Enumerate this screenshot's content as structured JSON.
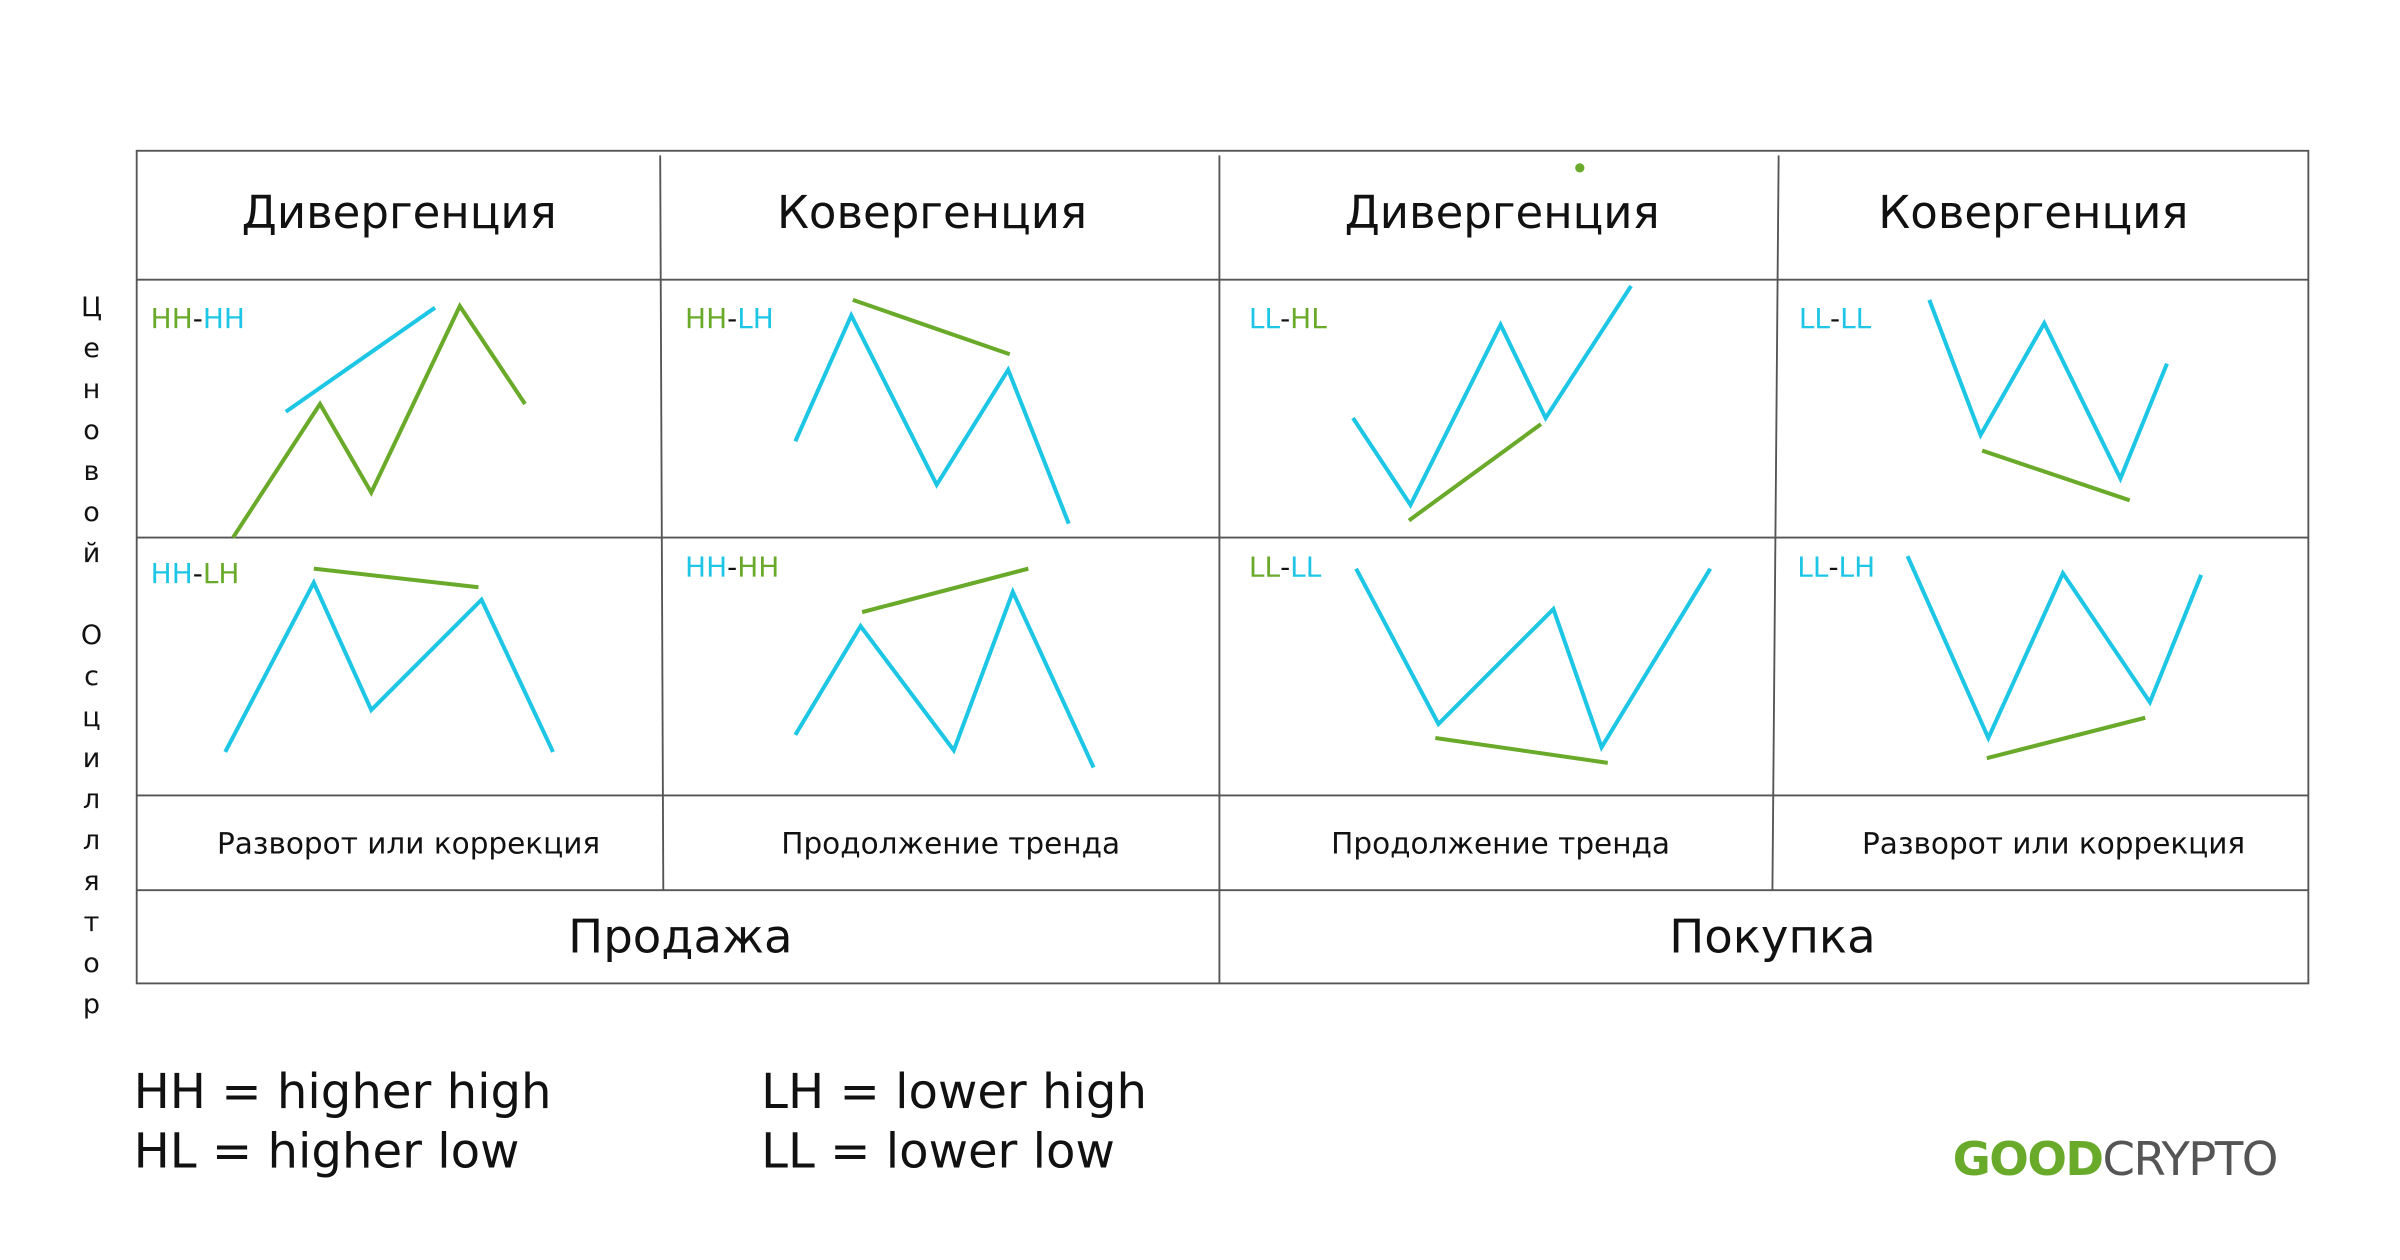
{
  "headers": [
    "Дивергенция",
    "Ковергенция",
    "Дивергенция",
    "Ковергенция"
  ],
  "cells": [
    {
      "label": [
        "HH",
        "-",
        "HH"
      ]
    },
    {
      "label": [
        "HH",
        "-",
        "LH"
      ]
    },
    {
      "label": [
        "LL",
        "-",
        "HL"
      ]
    },
    {
      "label": [
        "LL",
        "-",
        "LL"
      ]
    },
    {
      "label": [
        "HH",
        "-",
        "LH"
      ]
    },
    {
      "label": [
        "HH",
        "-",
        "HH"
      ]
    },
    {
      "label": [
        "LL",
        "-",
        "LL"
      ]
    },
    {
      "label": [
        "LL",
        "-",
        "LH"
      ]
    }
  ],
  "outcomes": [
    "Разворот или коррекция",
    "Продолжение тренда",
    "Продолжение тренда",
    "Разворот или коррекция"
  ],
  "actions": [
    "Продажа",
    "Покупка"
  ],
  "side_label": "Ценовой Осциллятор",
  "legend": [
    "HH = higher high",
    "HL = higher low",
    "LH = lower high",
    "LL = lower low"
  ],
  "logo": [
    "GOOD",
    "CRYPTO"
  ]
}
